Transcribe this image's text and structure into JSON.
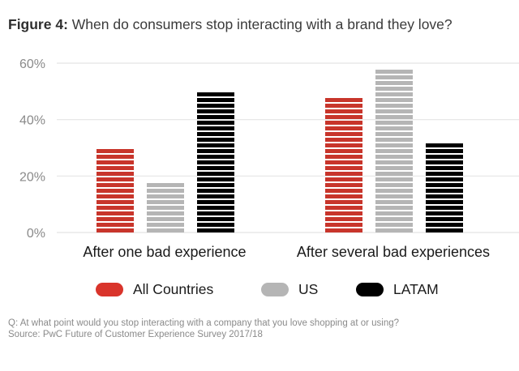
{
  "figure": {
    "title_bold": "Figure 4:",
    "title_rest": " When do consumers stop interacting with a brand they love?"
  },
  "chart_data": {
    "type": "bar",
    "title": "Figure 4: When do consumers stop interacting with a brand they love?",
    "xlabel": "",
    "ylabel": "",
    "categories": [
      "After one bad experience",
      "After several bad experiences"
    ],
    "series": [
      {
        "name": "All Countries",
        "color": "#c8352b",
        "values": [
          30,
          48
        ]
      },
      {
        "name": "US",
        "color": "#b5b5b5",
        "values": [
          18,
          58
        ]
      },
      {
        "name": "LATAM",
        "color": "#000000",
        "values": [
          50,
          32
        ]
      }
    ],
    "ylim": [
      0,
      60
    ],
    "yticks": [
      0,
      20,
      40,
      60
    ],
    "ytick_labels": [
      "0%",
      "20%",
      "40%",
      "60%"
    ],
    "grid": true,
    "legend_position": "bottom",
    "bar_style": "horizontal-striped"
  },
  "legend": [
    {
      "label": "All Countries",
      "color": "#d9342b"
    },
    {
      "label": "US",
      "color": "#b5b5b5"
    },
    {
      "label": "LATAM",
      "color": "#000000"
    }
  ],
  "notes": {
    "question": "Q: At what point would you stop interacting with a company that you love shopping at or using?",
    "source": "Source: PwC Future of Customer Experience Survey 2017/18"
  }
}
